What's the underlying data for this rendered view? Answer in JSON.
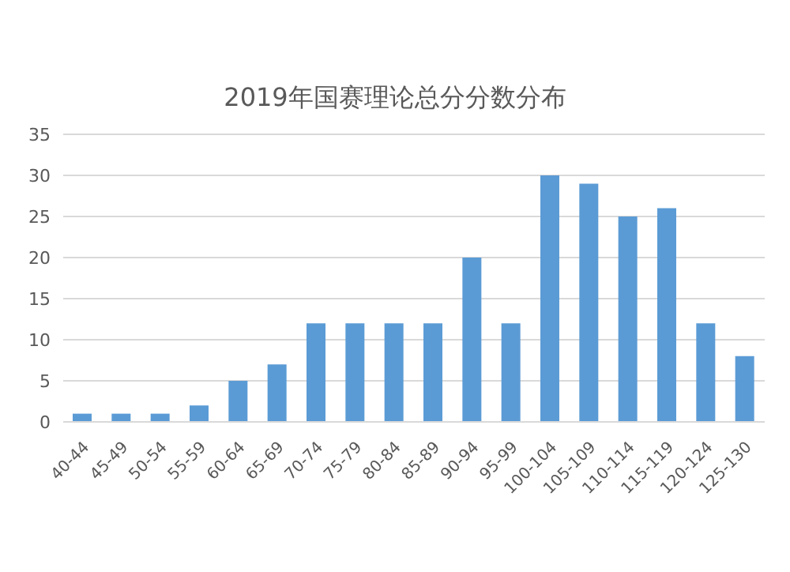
{
  "chart_data": {
    "type": "bar",
    "title": "2019年国赛理论总分分数分布",
    "categories": [
      "40-44",
      "45-49",
      "50-54",
      "55-59",
      "60-64",
      "65-69",
      "70-74",
      "75-79",
      "80-84",
      "85-89",
      "90-94",
      "95-99",
      "100-104",
      "105-109",
      "110-114",
      "115-119",
      "120-124",
      "125-130"
    ],
    "values": [
      1,
      1,
      1,
      2,
      5,
      7,
      12,
      12,
      12,
      12,
      20,
      12,
      30,
      29,
      25,
      26,
      12,
      8
    ],
    "color": "#5b9bd5",
    "ylim": [
      0,
      35
    ],
    "yticks": [
      0,
      5,
      10,
      15,
      20,
      25,
      30,
      35
    ],
    "grid": "y"
  }
}
